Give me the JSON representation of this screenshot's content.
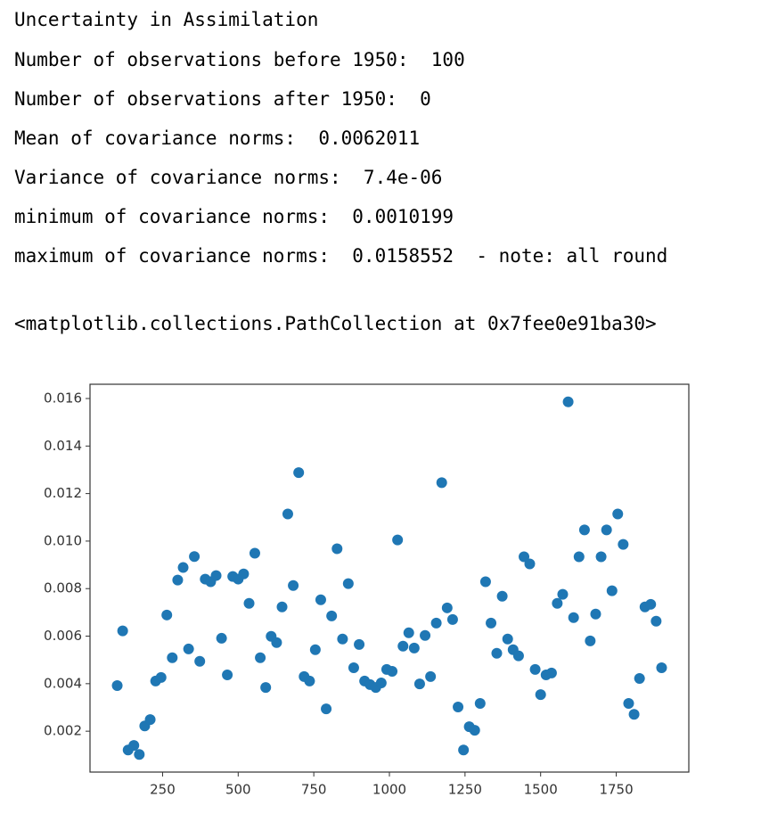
{
  "output": {
    "lines": [
      "Uncertainty in Assimilation",
      "Number of observations before 1950:  100",
      "Number of observations after 1950:  0",
      "Mean of covariance norms:  0.0062011",
      "Variance of covariance norms:  7.4e-06",
      "minimum of covariance norms:  0.0010199",
      "maximum of covariance norms:  0.0158552  - note: all round",
      "<matplotlib.collections.PathCollection at 0x7fee0e91ba30>"
    ]
  },
  "chart_data": {
    "type": "scatter",
    "color": "#1f77b4",
    "grid": false,
    "xlim": [
      10,
      1990
    ],
    "ylim": [
      0.00028,
      0.0166
    ],
    "xticks": [
      250,
      500,
      750,
      1000,
      1250,
      1500,
      1750
    ],
    "yticks": [
      0.002,
      0.004,
      0.006,
      0.008,
      {
        "value": 0.01,
        "label": "0.010"
      },
      0.012,
      0.014,
      0.016
    ],
    "x": [
      100,
      118,
      136,
      155,
      173,
      191,
      209,
      227,
      245,
      264,
      282,
      300,
      318,
      336,
      355,
      373,
      391,
      409,
      427,
      445,
      464,
      482,
      500,
      518,
      536,
      555,
      573,
      591,
      609,
      627,
      645,
      664,
      682,
      700,
      718,
      736,
      755,
      773,
      791,
      809,
      827,
      845,
      864,
      882,
      900,
      918,
      936,
      955,
      973,
      991,
      1009,
      1027,
      1045,
      1064,
      1082,
      1100,
      1118,
      1136,
      1155,
      1173,
      1191,
      1209,
      1227,
      1245,
      1264,
      1282,
      1300,
      1318,
      1336,
      1355,
      1373,
      1391,
      1409,
      1427,
      1445,
      1464,
      1482,
      1500,
      1518,
      1536,
      1555,
      1573,
      1591,
      1609,
      1627,
      1645,
      1664,
      1682,
      1700,
      1718,
      1736,
      1755,
      1773,
      1791,
      1809,
      1827,
      1845,
      1864,
      1882,
      1900
    ],
    "values": [
      0.00392,
      0.00622,
      0.00121,
      0.0014,
      0.00102,
      0.00222,
      0.00249,
      0.00411,
      0.00426,
      0.00689,
      0.00509,
      0.00836,
      0.00889,
      0.00546,
      0.00935,
      0.00494,
      0.0084,
      0.00829,
      0.00855,
      0.00591,
      0.00437,
      0.00851,
      0.0084,
      0.00862,
      0.00738,
      0.00949,
      0.00509,
      0.00384,
      0.00599,
      0.00573,
      0.00723,
      0.01114,
      0.00813,
      0.01288,
      0.0043,
      0.00411,
      0.00543,
      0.00753,
      0.00294,
      0.00685,
      0.00968,
      0.00588,
      0.00821,
      0.00467,
      0.00565,
      0.00411,
      0.00396,
      0.00384,
      0.00403,
      0.0046,
      0.00452,
      0.01005,
      0.00558,
      0.00614,
      0.0055,
      0.00399,
      0.00603,
      0.0043,
      0.00655,
      0.01246,
      0.00719,
      0.0067,
      0.00302,
      0.00121,
      0.00219,
      0.00204,
      0.00317,
      0.00829,
      0.00655,
      0.00528,
      0.00768,
      0.00588,
      0.00543,
      0.00517,
      0.00934,
      0.00904,
      0.0046,
      0.00354,
      0.00437,
      0.00445,
      0.00738,
      0.00776,
      0.01586,
      0.00678,
      0.00934,
      0.01047,
      0.0058,
      0.00693,
      0.00934,
      0.01047,
      0.00791,
      0.01114,
      0.00986,
      0.00317,
      0.00271,
      0.00422,
      0.00723,
      0.00734,
      0.00663,
      0.00467
    ]
  }
}
